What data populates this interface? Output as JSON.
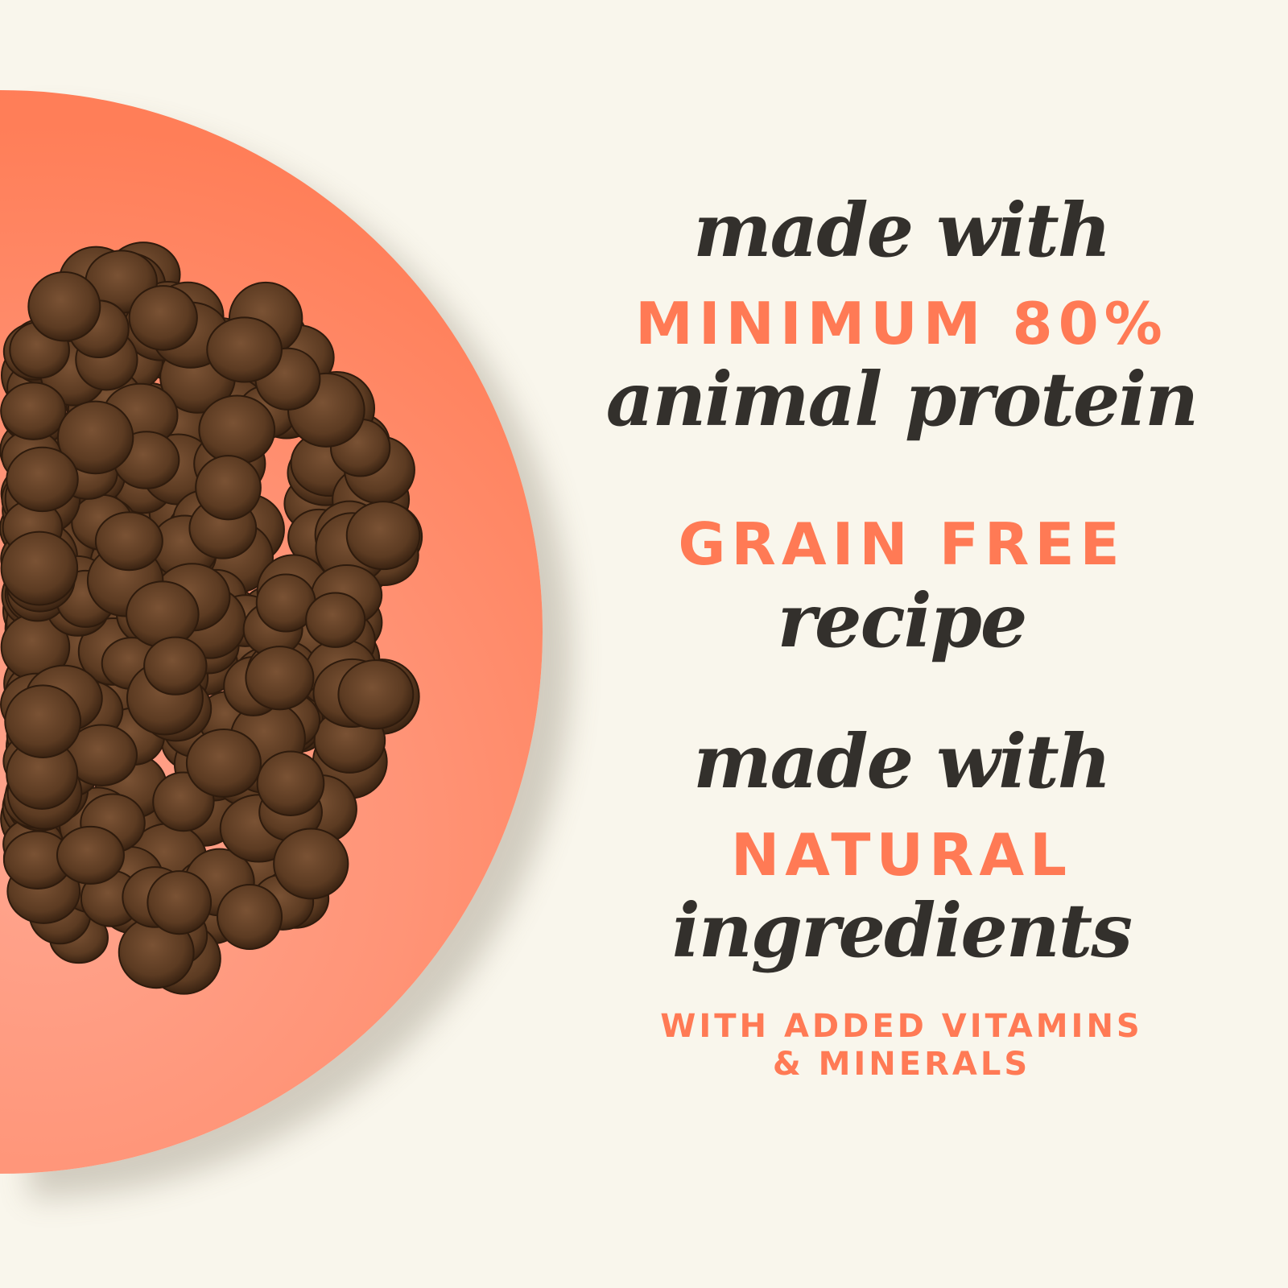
{
  "colors": {
    "background": "#F9F6EC",
    "plate": "#FF7E58",
    "accent_text": "#FF7A55",
    "script_text": "#33302C",
    "kibble": "#5A3A22"
  },
  "copy": {
    "line1": "made with",
    "line2": "MINIMUM 80%",
    "line3": "animal protein",
    "line4": "GRAIN FREE",
    "line5": "recipe",
    "line6": "made with",
    "line7": "NATURAL",
    "line8": "ingredients",
    "line9": "WITH ADDED VITAMINS",
    "line10": "& MINERALS"
  }
}
